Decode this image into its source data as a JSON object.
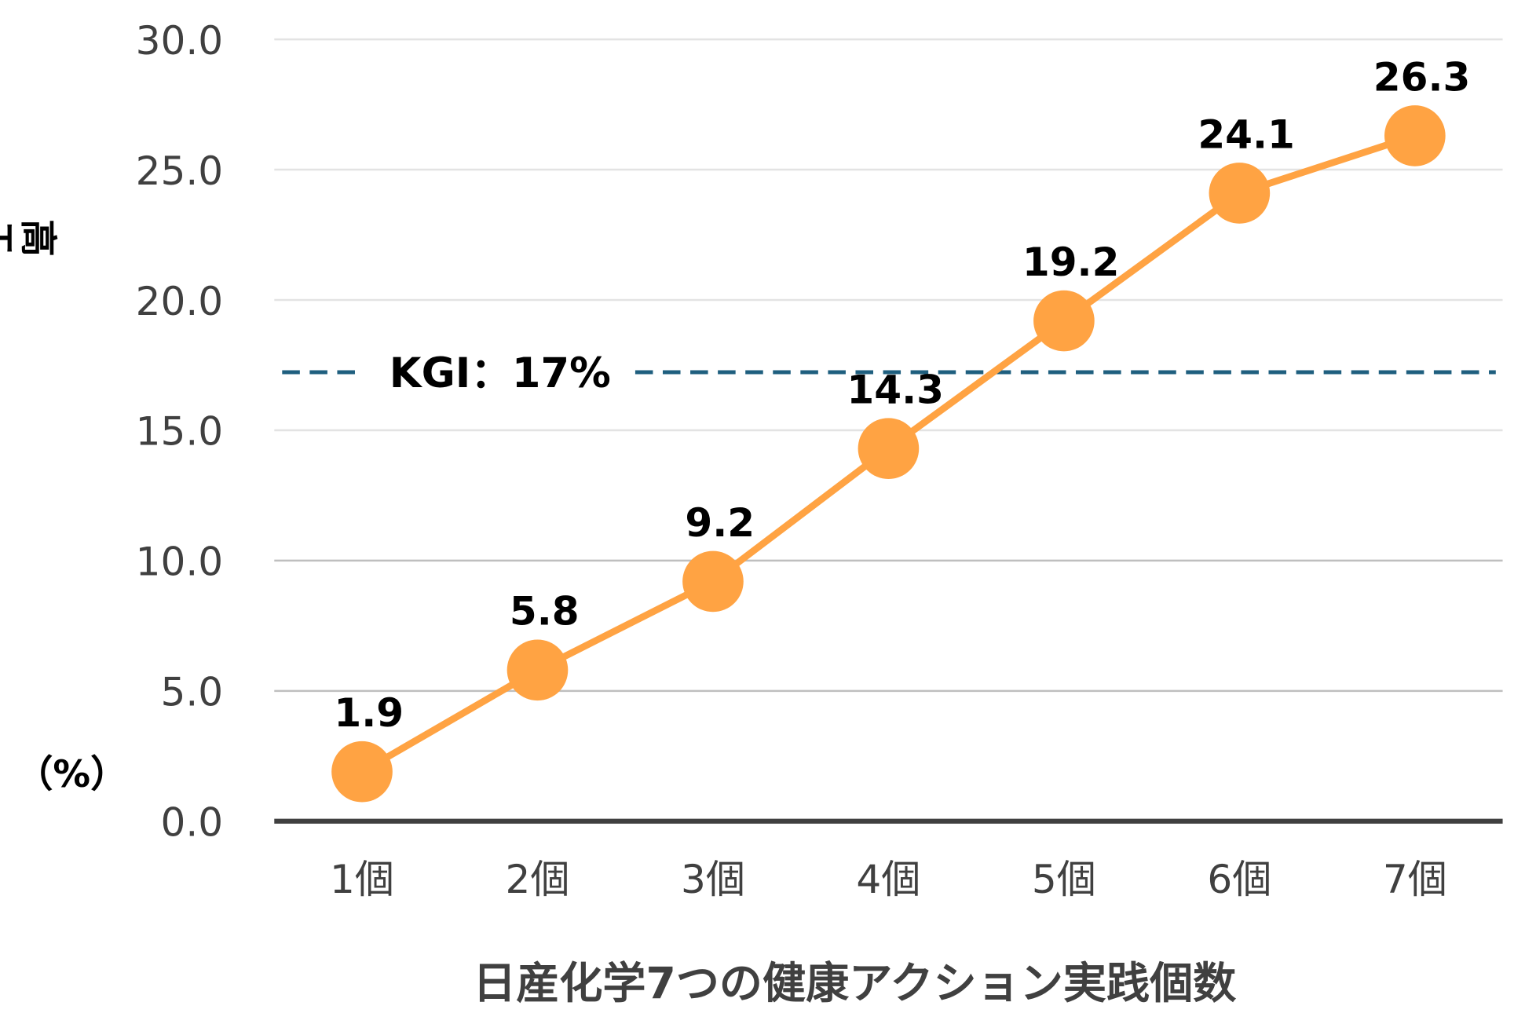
{
  "chart_data": {
    "type": "line",
    "title": "",
    "categories": [
      "1個",
      "2個",
      "3個",
      "4個",
      "5個",
      "6個",
      "7個"
    ],
    "series": [
      {
        "name": "高エンゲージメント者割合",
        "values": [
          1.9,
          5.8,
          9.2,
          14.3,
          19.2,
          24.1,
          26.3
        ],
        "color": "#FFA343"
      }
    ],
    "data_labels": [
      "1.9",
      "5.8",
      "9.2",
      "14.3",
      "19.2",
      "24.1",
      "26.3"
    ],
    "xlabel": "日産化学7つの健康アクション実践個数",
    "ylabel": "高エンゲージメント者割合",
    "ylabel_unit": "（%）",
    "ylim": [
      0,
      30
    ],
    "yticks": [
      "0.0",
      "5.0",
      "10.0",
      "15.0",
      "20.0",
      "25.0",
      "30.0"
    ],
    "grid": true,
    "reference_line": {
      "value": 17,
      "label": "KGI：17%",
      "color": "#1F5F7F",
      "style": "dashed"
    }
  }
}
